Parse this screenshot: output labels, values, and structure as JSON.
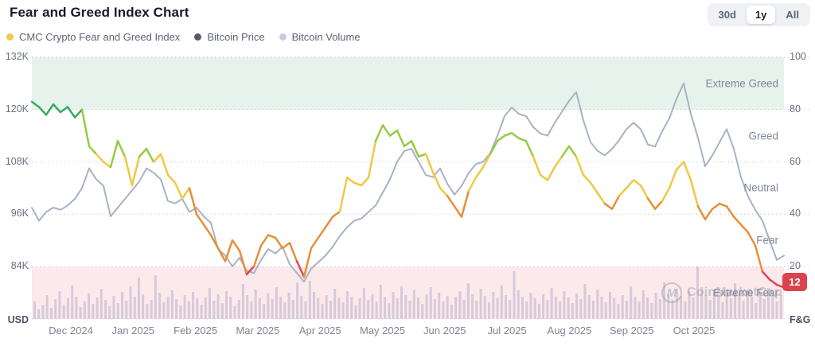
{
  "header": {
    "title": "Fear and Greed Index Chart",
    "range_buttons": [
      {
        "label": "30d",
        "selected": false
      },
      {
        "label": "1y",
        "selected": true
      },
      {
        "label": "All",
        "selected": false
      }
    ]
  },
  "legend": [
    {
      "label": "CMC Crypto Fear and Greed Index",
      "color": "#efc94c"
    },
    {
      "label": "Bitcoin Price",
      "color": "#555b6e"
    },
    {
      "label": "Bitcoin Volume",
      "color": "#c6cede"
    }
  ],
  "watermark": {
    "logo_letter": "M",
    "text": "CoinMarketCap"
  },
  "chart_data": {
    "type": "line",
    "title": "Fear and Greed Index Chart",
    "grid": "horizontal-dotted",
    "left_axis": {
      "label": "USD",
      "ticks": [
        "132K",
        "120K",
        "108K",
        "96K",
        "84K"
      ],
      "tick_values_k": [
        132,
        120,
        108,
        96,
        84
      ]
    },
    "right_axis": {
      "label": "F&G",
      "ticks": [
        "100",
        "80",
        "60",
        "40",
        "20"
      ],
      "tick_values": [
        100,
        80,
        60,
        40,
        20
      ],
      "range": [
        0,
        100
      ]
    },
    "x_tick_labels": [
      "Dec 2024",
      "Jan 2025",
      "Feb 2025",
      "Mar 2025",
      "Apr 2025",
      "May 2025",
      "Jun 2025",
      "Jul 2025",
      "Aug 2025",
      "Sep 2025",
      "Oct 2025"
    ],
    "zones": [
      {
        "label": "Extreme Greed",
        "min": 80,
        "max": 100,
        "band_color": "#e6f3ec"
      },
      {
        "label": "Greed",
        "min": 60,
        "max": 80,
        "band_color": null
      },
      {
        "label": "Neutral",
        "min": 40,
        "max": 60,
        "band_color": null
      },
      {
        "label": "Fear",
        "min": 20,
        "max": 40,
        "band_color": null
      },
      {
        "label": "Extreme Fear",
        "min": 0,
        "max": 20,
        "band_color": "#fbe9ec"
      }
    ],
    "current_fg_value": 12,
    "fg_color_stops": [
      {
        "min": 76,
        "color": "#3aa863"
      },
      {
        "min": 62,
        "color": "#94cc42"
      },
      {
        "min": 46,
        "color": "#eec943"
      },
      {
        "min": 21,
        "color": "#e68f3a"
      },
      {
        "min": 0,
        "color": "#da4a4f"
      }
    ],
    "btc_line_color": "#a9b1c4",
    "volume_bar_color": "#d7cad8",
    "grid_color": "#c7ccd8",
    "series": [
      {
        "name": "CMC Crypto Fear and Greed Index",
        "axis": "right",
        "values": [
          83,
          81,
          78,
          82,
          79,
          81,
          77,
          80,
          66,
          63,
          60,
          58,
          68,
          62,
          51,
          62,
          65,
          60,
          63,
          55,
          52,
          46,
          50,
          40,
          36,
          32,
          27,
          22,
          30,
          26,
          17,
          20,
          28,
          32,
          31,
          27,
          29,
          22,
          16,
          27,
          31,
          35,
          39,
          41,
          54,
          52,
          51,
          54,
          68,
          74,
          70,
          72,
          66,
          68,
          62,
          63,
          56,
          50,
          47,
          43,
          39,
          49,
          54,
          58,
          63,
          68,
          70,
          71,
          69,
          68,
          62,
          55,
          53,
          58,
          62,
          66,
          62,
          55,
          52,
          48,
          44,
          42,
          47,
          50,
          53,
          51,
          46,
          42,
          45,
          50,
          57,
          60,
          53,
          43,
          38,
          42,
          44,
          43,
          39,
          36,
          33,
          28,
          18,
          15,
          13,
          12
        ]
      },
      {
        "name": "Bitcoin Price",
        "axis": "left",
        "unit": "K USD",
        "values": [
          97.5,
          94.5,
          96.5,
          97.5,
          97,
          98,
          99.5,
          102,
          106.5,
          104,
          102.5,
          95.5,
          97.5,
          99.5,
          101.5,
          103.5,
          106.5,
          105.5,
          104,
          99,
          98.5,
          99.5,
          96.5,
          97.5,
          95.5,
          94,
          88,
          86.5,
          84,
          86,
          83,
          82.5,
          85.5,
          88,
          87,
          88.5,
          84.5,
          82.5,
          80.5,
          83.5,
          85,
          86.5,
          88.5,
          91,
          93,
          94.5,
          95,
          96.5,
          98,
          101,
          104,
          108,
          110.5,
          111,
          108,
          105,
          104.5,
          106.5,
          103,
          100.5,
          102.5,
          105.5,
          107.5,
          108,
          110,
          114,
          118.5,
          120.5,
          119,
          118.5,
          116,
          114.5,
          114,
          117,
          119.5,
          122,
          124,
          117.5,
          112.5,
          110.5,
          109.5,
          111,
          113,
          115.5,
          117,
          115.5,
          112,
          111.5,
          115,
          118,
          122.5,
          126,
          119,
          113.5,
          107,
          109.5,
          112.5,
          115.5,
          111,
          104.5,
          100,
          97,
          94.5,
          90,
          85.5,
          86.5
        ]
      },
      {
        "name": "Bitcoin Volume",
        "type": "bar",
        "unit": "relative-height-px",
        "values": [
          22,
          12,
          18,
          30,
          14,
          25,
          35,
          18,
          26,
          42,
          28,
          15,
          22,
          32,
          19,
          27,
          38,
          24,
          16,
          29,
          20,
          34,
          23,
          41,
          28,
          52,
          31,
          19,
          24,
          55,
          33,
          21,
          28,
          36,
          25,
          17,
          30,
          22,
          34,
          26,
          18,
          27,
          39,
          23,
          31,
          20,
          35,
          28,
          16,
          24,
          44,
          30,
          22,
          37,
          26,
          19,
          32,
          25,
          40,
          28,
          21,
          33,
          24,
          46,
          29,
          22,
          48,
          34,
          26,
          19,
          30,
          23,
          38,
          27,
          21,
          35,
          28,
          17,
          26,
          39,
          24,
          31,
          22,
          43,
          28,
          20,
          34,
          26,
          41,
          30,
          23,
          36,
          27,
          19,
          31,
          40,
          25,
          33,
          22,
          29,
          18,
          28,
          35,
          24,
          45,
          31,
          23,
          38,
          29,
          21,
          34,
          26,
          42,
          30,
          24,
          60,
          36,
          28,
          22,
          33,
          26,
          19,
          31,
          24,
          39,
          28,
          22,
          35,
          27,
          20,
          32,
          25,
          44,
          30,
          23,
          37,
          28,
          21,
          34,
          26,
          19,
          30,
          23,
          41,
          28,
          22,
          36,
          27,
          20,
          33,
          25,
          46,
          31,
          24,
          38,
          29,
          22,
          35,
          27,
          66,
          40,
          30,
          24,
          37,
          28,
          21,
          33,
          26,
          45,
          31,
          23,
          36,
          28,
          20,
          32,
          25,
          39,
          29,
          22,
          30
        ]
      }
    ]
  }
}
